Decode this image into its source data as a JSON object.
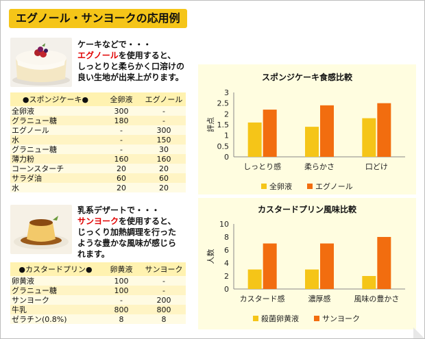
{
  "title": "エグノール・サンヨークの応用例",
  "section1": {
    "desc": {
      "l1": "ケーキなどで・・・",
      "l2_red": "エグノール",
      "l2_rest": "を使用すると、",
      "l3": "しっとりと柔らかく口溶けの",
      "l4": "良い生地が出来上がります。"
    },
    "table": {
      "headers": [
        "●スポンジケーキ●",
        "全卵液",
        "エグノール"
      ],
      "rows": [
        [
          "全卵液",
          "300",
          "-"
        ],
        [
          "グラニュー糖",
          "180",
          "-"
        ],
        [
          "エグノール",
          "-",
          "300"
        ],
        [
          "水",
          "-",
          "150"
        ],
        [
          "グラニュー糖",
          "-",
          "30"
        ],
        [
          "薄力粉",
          "160",
          "160"
        ],
        [
          "コーンスターチ",
          "20",
          "20"
        ],
        [
          "サラダ油",
          "60",
          "60"
        ],
        [
          "水",
          "20",
          "20"
        ]
      ]
    }
  },
  "section2": {
    "desc": {
      "l1": "乳系デザートで・・・",
      "l2_red": "サンヨーク",
      "l2_rest": "を使用すると、",
      "l3": "じっくり加熱調理を行った",
      "l4": "ような豊かな風味が感じら",
      "l5": "れます。"
    },
    "table": {
      "headers": [
        "●カスタードプリン●",
        "卵黄液",
        "サンヨーク"
      ],
      "rows": [
        [
          "卵黄液",
          "100",
          "-"
        ],
        [
          "グラニュー糖",
          "100",
          "-"
        ],
        [
          "サンヨーク",
          "-",
          "200"
        ],
        [
          "牛乳",
          "800",
          "800"
        ],
        [
          "ゼラチン(0.8%)",
          "8",
          "8"
        ]
      ]
    }
  },
  "colors": {
    "yellow": "#f5c518",
    "orange": "#f26d0f",
    "panel": "#fffde0",
    "table_header": "#fff2b0",
    "red_text": "#e00000"
  },
  "chart_data": [
    {
      "type": "bar",
      "title": "スポンジケーキ食感比較",
      "ylabel": "評点",
      "categories": [
        "しっとり感",
        "柔らかさ",
        "口どけ"
      ],
      "series": [
        {
          "name": "全卵液",
          "values": [
            1.6,
            1.4,
            1.8
          ]
        },
        {
          "name": "エグノール",
          "values": [
            2.2,
            2.4,
            2.5
          ]
        }
      ],
      "ylim": [
        0,
        3
      ],
      "yticks": [
        "0",
        "0.5",
        "1",
        "1.5",
        "2",
        "2.5",
        "3"
      ],
      "grid": false,
      "legend": "bottom"
    },
    {
      "type": "bar",
      "title": "カスタードプリン風味比較",
      "ylabel": "人数",
      "categories": [
        "カスタード感",
        "濃厚感",
        "風味の豊かさ"
      ],
      "series": [
        {
          "name": "殺菌卵黄液",
          "values": [
            3,
            3,
            2
          ]
        },
        {
          "name": "サンヨーク",
          "values": [
            7,
            7,
            8
          ]
        }
      ],
      "ylim": [
        0,
        10
      ],
      "yticks": [
        "0",
        "2",
        "4",
        "6",
        "8",
        "10"
      ],
      "grid": false,
      "legend": "bottom"
    }
  ]
}
